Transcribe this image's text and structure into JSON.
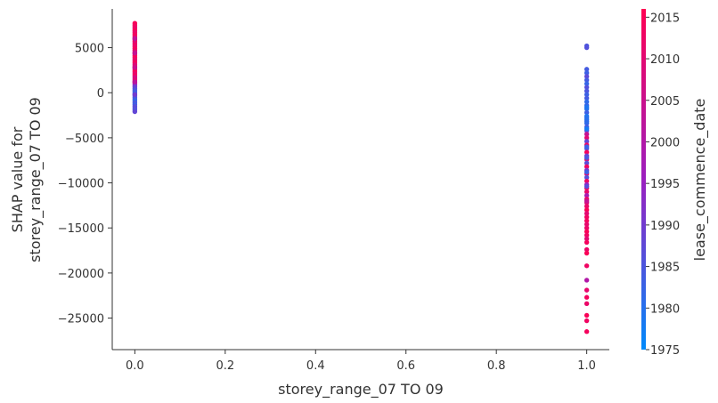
{
  "chart_data": {
    "type": "scatter",
    "xlabel": "storey_range_07 TO 09",
    "ylabel_lines": [
      "SHAP value for",
      "storey_range_07 TO 09"
    ],
    "xlim": [
      -0.05,
      1.05
    ],
    "ylim": [
      -28500,
      9300
    ],
    "x_ticks": [
      0.0,
      0.2,
      0.4,
      0.6,
      0.8,
      1.0
    ],
    "x_tick_labels": [
      "0.0",
      "0.2",
      "0.4",
      "0.6",
      "0.8",
      "1.0"
    ],
    "y_ticks": [
      5000,
      0,
      -5000,
      -10000,
      -15000,
      -20000,
      -25000
    ],
    "y_tick_labels": [
      "5000",
      "0",
      "−5000",
      "−10000",
      "−15000",
      "−20000",
      "−25000"
    ],
    "colorbar": {
      "label": "lease_commence_date",
      "min": 1975,
      "max": 2016,
      "ticks": [
        1975,
        1980,
        1985,
        1990,
        1995,
        2000,
        2005,
        2010,
        2015
      ],
      "tick_labels": [
        "1975",
        "1980",
        "1985",
        "1990",
        "1995",
        "2000",
        "2005",
        "2010",
        "2015"
      ],
      "color_low": "#008afb",
      "color_mid": "#9b1fbf",
      "color_high": "#ff0052"
    },
    "groups": [
      {
        "x": 0.0,
        "points": [
          [
            7700,
            2015
          ],
          [
            7500,
            2014
          ],
          [
            7300,
            2013
          ],
          [
            7100,
            2012
          ],
          [
            6900,
            2015
          ],
          [
            6700,
            2011
          ],
          [
            6500,
            2013
          ],
          [
            6300,
            2014
          ],
          [
            6100,
            2010
          ],
          [
            5900,
            2012
          ],
          [
            5700,
            2015
          ],
          [
            5500,
            2009
          ],
          [
            5300,
            2013
          ],
          [
            5100,
            2011
          ],
          [
            4900,
            2014
          ],
          [
            4700,
            2012
          ],
          [
            4500,
            2008
          ],
          [
            4300,
            2010
          ],
          [
            4100,
            2013
          ],
          [
            3900,
            2015
          ],
          [
            3700,
            2011
          ],
          [
            3500,
            2012
          ],
          [
            3300,
            2014
          ],
          [
            3100,
            2009
          ],
          [
            2900,
            2010
          ],
          [
            2700,
            2013
          ],
          [
            2500,
            2012
          ],
          [
            2300,
            2015
          ],
          [
            2100,
            2011
          ],
          [
            1900,
            2014
          ],
          [
            1700,
            2007
          ],
          [
            1500,
            2009
          ],
          [
            1300,
            2011
          ],
          [
            1100,
            2006
          ],
          [
            900,
            1996
          ],
          [
            700,
            1990
          ],
          [
            500,
            1988
          ],
          [
            300,
            1985
          ],
          [
            100,
            1984
          ],
          [
            -100,
            1983
          ],
          [
            -300,
            1982
          ],
          [
            -500,
            1986
          ],
          [
            -700,
            1984
          ],
          [
            -900,
            1981
          ],
          [
            -1100,
            1985
          ],
          [
            -1300,
            1983
          ],
          [
            -1500,
            1986
          ],
          [
            -1700,
            1987
          ],
          [
            -1900,
            1985
          ],
          [
            -2100,
            1988
          ],
          [
            6000,
            2003
          ],
          [
            4400,
            2004
          ],
          [
            2800,
            2005
          ],
          [
            1200,
            2002
          ],
          [
            -200,
            1990
          ]
        ]
      },
      {
        "x": 1.0,
        "points": [
          [
            5200,
            1985
          ],
          [
            5000,
            1986
          ],
          [
            2600,
            1984
          ],
          [
            2200,
            1983
          ],
          [
            1800,
            1987
          ],
          [
            1400,
            1984
          ],
          [
            1000,
            1982
          ],
          [
            600,
            1986
          ],
          [
            200,
            1985
          ],
          [
            -200,
            1983
          ],
          [
            -600,
            1984
          ],
          [
            -1000,
            1981
          ],
          [
            -1400,
            1982
          ],
          [
            -1800,
            1980
          ],
          [
            -2200,
            1983
          ],
          [
            -2600,
            1979
          ],
          [
            -3000,
            1980
          ],
          [
            -3400,
            1982
          ],
          [
            -3800,
            1984
          ],
          [
            -4200,
            1986
          ],
          [
            -4600,
            2004
          ],
          [
            -5000,
            2010
          ],
          [
            -5400,
            1988
          ],
          [
            -5800,
            2012
          ],
          [
            -6200,
            1985
          ],
          [
            -6600,
            2014
          ],
          [
            -7000,
            1990
          ],
          [
            -7400,
            2011
          ],
          [
            -7800,
            1987
          ],
          [
            -8200,
            2013
          ],
          [
            -8600,
            1992
          ],
          [
            -9000,
            2010
          ],
          [
            -9400,
            1986
          ],
          [
            -9800,
            2012
          ],
          [
            -10200,
            1995
          ],
          [
            -10600,
            2014
          ],
          [
            -11000,
            2011
          ],
          [
            -11400,
            1998
          ],
          [
            -11800,
            2013
          ],
          [
            -12200,
            2009
          ],
          [
            -12600,
            2012
          ],
          [
            -13000,
            2015
          ],
          [
            -13400,
            2010
          ],
          [
            -13800,
            2013
          ],
          [
            -14200,
            2014
          ],
          [
            -14600,
            2011
          ],
          [
            -15000,
            2012
          ],
          [
            -15400,
            2015
          ],
          [
            -15800,
            2013
          ],
          [
            -16200,
            2010
          ],
          [
            -16600,
            2014
          ],
          [
            -17400,
            2012
          ],
          [
            -17800,
            2015
          ],
          [
            -19200,
            2013
          ],
          [
            -20800,
            2000
          ],
          [
            -21900,
            2011
          ],
          [
            -22700,
            2014
          ],
          [
            -23400,
            2012
          ],
          [
            -24700,
            2015
          ],
          [
            -25300,
            2013
          ],
          [
            -26500,
            2014
          ],
          [
            -3200,
            1981
          ],
          [
            -4000,
            1978
          ],
          [
            -2800,
            1980
          ],
          [
            -1600,
            1979
          ],
          [
            -6000,
            1983
          ],
          [
            -7200,
            1985
          ],
          [
            -8800,
            1983
          ],
          [
            -10400,
            1987
          ],
          [
            -12000,
            2004
          ]
        ]
      }
    ]
  }
}
